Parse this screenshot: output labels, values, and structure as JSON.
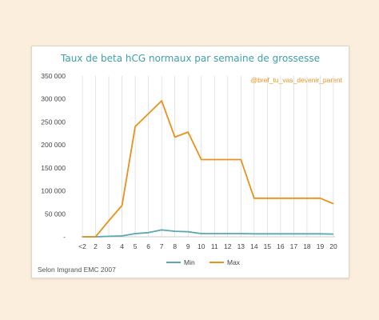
{
  "chart_data": {
    "type": "line",
    "title": "Taux de beta hCG normaux par semaine de grossesse",
    "watermark": "@bref_tu_vas_devenir_parent",
    "source_note": "Selon Imgrand EMC 2007",
    "categories": [
      "<2",
      "2",
      "3",
      "4",
      "5",
      "6",
      "7",
      "8",
      "9",
      "10",
      "11",
      "12",
      "13",
      "14",
      "15",
      "16",
      "17",
      "18",
      "19",
      "20"
    ],
    "y_ticks": [
      "-",
      "50 000",
      "100 000",
      "150 000",
      "200 000",
      "250 000",
      "300 000",
      "350 000"
    ],
    "ylim": [
      0,
      350000
    ],
    "grid": "vertical",
    "legend_position": "bottom",
    "series": [
      {
        "name": "Min",
        "color": "#5aa8b0",
        "values": [
          0,
          0,
          1000,
          2000,
          7000,
          9000,
          15000,
          12000,
          11000,
          7000,
          7000,
          7000,
          7000,
          6500,
          6500,
          6500,
          6500,
          6500,
          6500,
          6000
        ]
      },
      {
        "name": "Max",
        "color": "#e8921c",
        "values": [
          0,
          0,
          35000,
          68000,
          240000,
          268000,
          296000,
          217000,
          228000,
          168000,
          168000,
          168000,
          168000,
          84000,
          84000,
          84000,
          84000,
          84000,
          84000,
          72000
        ]
      }
    ]
  }
}
